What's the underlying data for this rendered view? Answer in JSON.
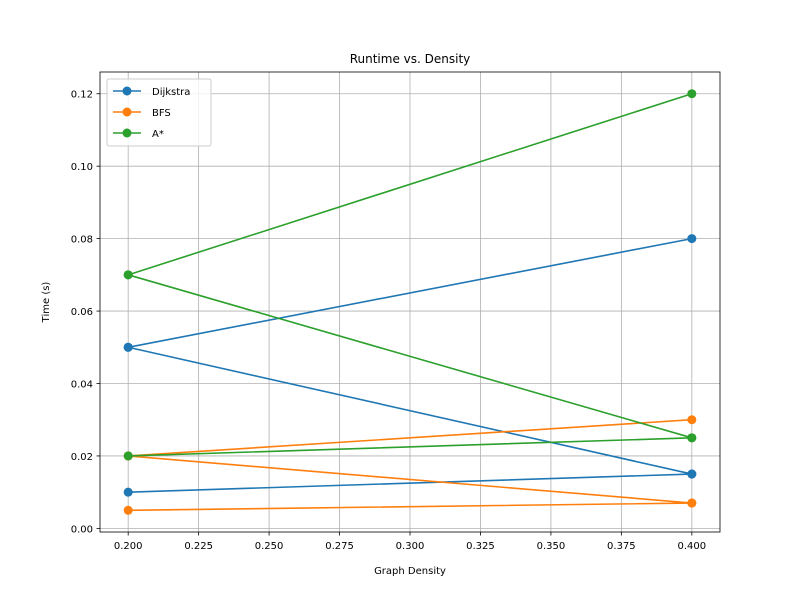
{
  "chart_data": {
    "type": "line",
    "title": "Runtime vs. Density",
    "xlabel": "Graph Density",
    "ylabel": "Time (s)",
    "xlim": [
      0.19,
      0.41
    ],
    "ylim": [
      -0.001,
      0.126
    ],
    "xticks": [
      0.2,
      0.225,
      0.25,
      0.275,
      0.3,
      0.325,
      0.35,
      0.375,
      0.4
    ],
    "xtick_labels": [
      "0.200",
      "0.225",
      "0.250",
      "0.275",
      "0.300",
      "0.325",
      "0.350",
      "0.375",
      "0.400"
    ],
    "yticks": [
      0.0,
      0.02,
      0.04,
      0.06,
      0.08,
      0.1,
      0.12
    ],
    "ytick_labels": [
      "0.00",
      "0.02",
      "0.04",
      "0.06",
      "0.08",
      "0.10",
      "0.12"
    ],
    "grid": true,
    "legend_position": "top-left",
    "series": [
      {
        "name": "Dijkstra",
        "color": "#1f77b4",
        "x": [
          0.2,
          0.4,
          0.2,
          0.4,
          0.2,
          0.4
        ],
        "y": [
          0.01,
          0.015,
          0.05,
          0.015,
          0.05,
          0.08
        ]
      },
      {
        "name": "BFS",
        "color": "#ff7f0e",
        "x": [
          0.2,
          0.4,
          0.2,
          0.4,
          0.2,
          0.4
        ],
        "y": [
          0.005,
          0.007,
          0.02,
          0.007,
          0.02,
          0.03
        ]
      },
      {
        "name": "A*",
        "color": "#2ca02c",
        "x": [
          0.2,
          0.4,
          0.2,
          0.4,
          0.2,
          0.4
        ],
        "y": [
          0.02,
          0.025,
          0.07,
          0.025,
          0.07,
          0.12
        ]
      }
    ]
  }
}
